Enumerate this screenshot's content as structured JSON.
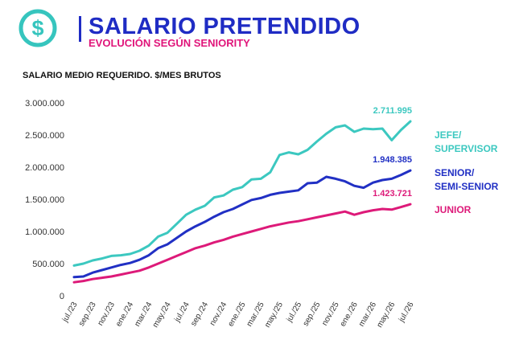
{
  "header": {
    "title": "SALARIO PRETENDIDO",
    "subtitle": "EVOLUCIÓN SEGÚN SENIORITY",
    "logo_icon": "dollar-circle-icon",
    "accent_color": "#1f2cc4",
    "logo_color": "#36c5be",
    "subtitle_color": "#e0157a"
  },
  "chart_label": "SALARIO MEDIO REQUERIDO. $/MES BRUTOS",
  "chart_data": {
    "type": "line",
    "title": "SALARIO MEDIO REQUERIDO. $/MES BRUTOS",
    "ylim": [
      0,
      3000000
    ],
    "yticks": [
      0,
      500000,
      1000000,
      1500000,
      2000000,
      2500000,
      3000000
    ],
    "ytick_labels": [
      "0",
      "500.000",
      "1.000.000",
      "1.500.000",
      "2.000.000",
      "2.500.000",
      "3.000.000"
    ],
    "grid": false,
    "legend": "right",
    "x": [
      "jul./23",
      "ago./23",
      "sep./23",
      "oct./23",
      "nov./23",
      "dic./23",
      "ene./24",
      "feb./24",
      "mar./24",
      "abr./24",
      "may./24",
      "jun./24",
      "jul./24",
      "ago./24",
      "sep./24",
      "oct./24",
      "nov./24",
      "dic./24",
      "ene./25",
      "feb./25",
      "mar./25",
      "abr./25",
      "may./25",
      "jun./25",
      "jul./25",
      "ago./25",
      "sep./25",
      "oct./25",
      "nov./25",
      "dic./25",
      "ene./26",
      "feb./26",
      "mar./26",
      "abr./26",
      "may./26",
      "jun./26",
      "jul./26"
    ],
    "x_tick_labels": [
      "jul./23",
      "sep./23",
      "nov./23",
      "ene./24",
      "mar./24",
      "may./24",
      "jul./24",
      "sep./24",
      "nov./24",
      "ene./25",
      "mar./25",
      "may./25",
      "jul./25",
      "sep./25",
      "nov./25",
      "ene./26",
      "mar./26",
      "may./26",
      "jul./26"
    ],
    "series": [
      {
        "name": "JEFE/ SUPERVISOR",
        "legend_lines": [
          "JEFE/",
          "SUPERVISOR"
        ],
        "color": "#3cc8c0",
        "end_label": "2.711.995",
        "values": [
          470000,
          500000,
          550000,
          580000,
          620000,
          630000,
          650000,
          700000,
          780000,
          920000,
          980000,
          1120000,
          1260000,
          1340000,
          1400000,
          1530000,
          1560000,
          1650000,
          1690000,
          1810000,
          1820000,
          1920000,
          2190000,
          2230000,
          2200000,
          2270000,
          2400000,
          2520000,
          2620000,
          2650000,
          2550000,
          2600000,
          2590000,
          2600000,
          2420000,
          2580000,
          2711995
        ]
      },
      {
        "name": "SENIOR/ SEMI-SENIOR",
        "legend_lines": [
          "SENIOR/",
          "SEMI-SENIOR"
        ],
        "color": "#2130c4",
        "end_label": "1.948.385",
        "values": [
          290000,
          300000,
          360000,
          400000,
          440000,
          480000,
          510000,
          560000,
          630000,
          740000,
          800000,
          900000,
          1000000,
          1080000,
          1150000,
          1230000,
          1300000,
          1350000,
          1420000,
          1490000,
          1520000,
          1570000,
          1600000,
          1620000,
          1640000,
          1750000,
          1760000,
          1850000,
          1820000,
          1780000,
          1710000,
          1680000,
          1760000,
          1800000,
          1820000,
          1880000,
          1948385
        ]
      },
      {
        "name": "JUNIOR",
        "legend_lines": [
          "JUNIOR"
        ],
        "color": "#dd1a79",
        "end_label": "1.423.721",
        "values": [
          210000,
          230000,
          260000,
          280000,
          300000,
          330000,
          360000,
          390000,
          440000,
          500000,
          560000,
          620000,
          680000,
          740000,
          780000,
          830000,
          870000,
          920000,
          960000,
          1000000,
          1040000,
          1080000,
          1110000,
          1140000,
          1160000,
          1190000,
          1220000,
          1250000,
          1280000,
          1310000,
          1260000,
          1300000,
          1330000,
          1350000,
          1340000,
          1380000,
          1423721
        ]
      }
    ]
  }
}
